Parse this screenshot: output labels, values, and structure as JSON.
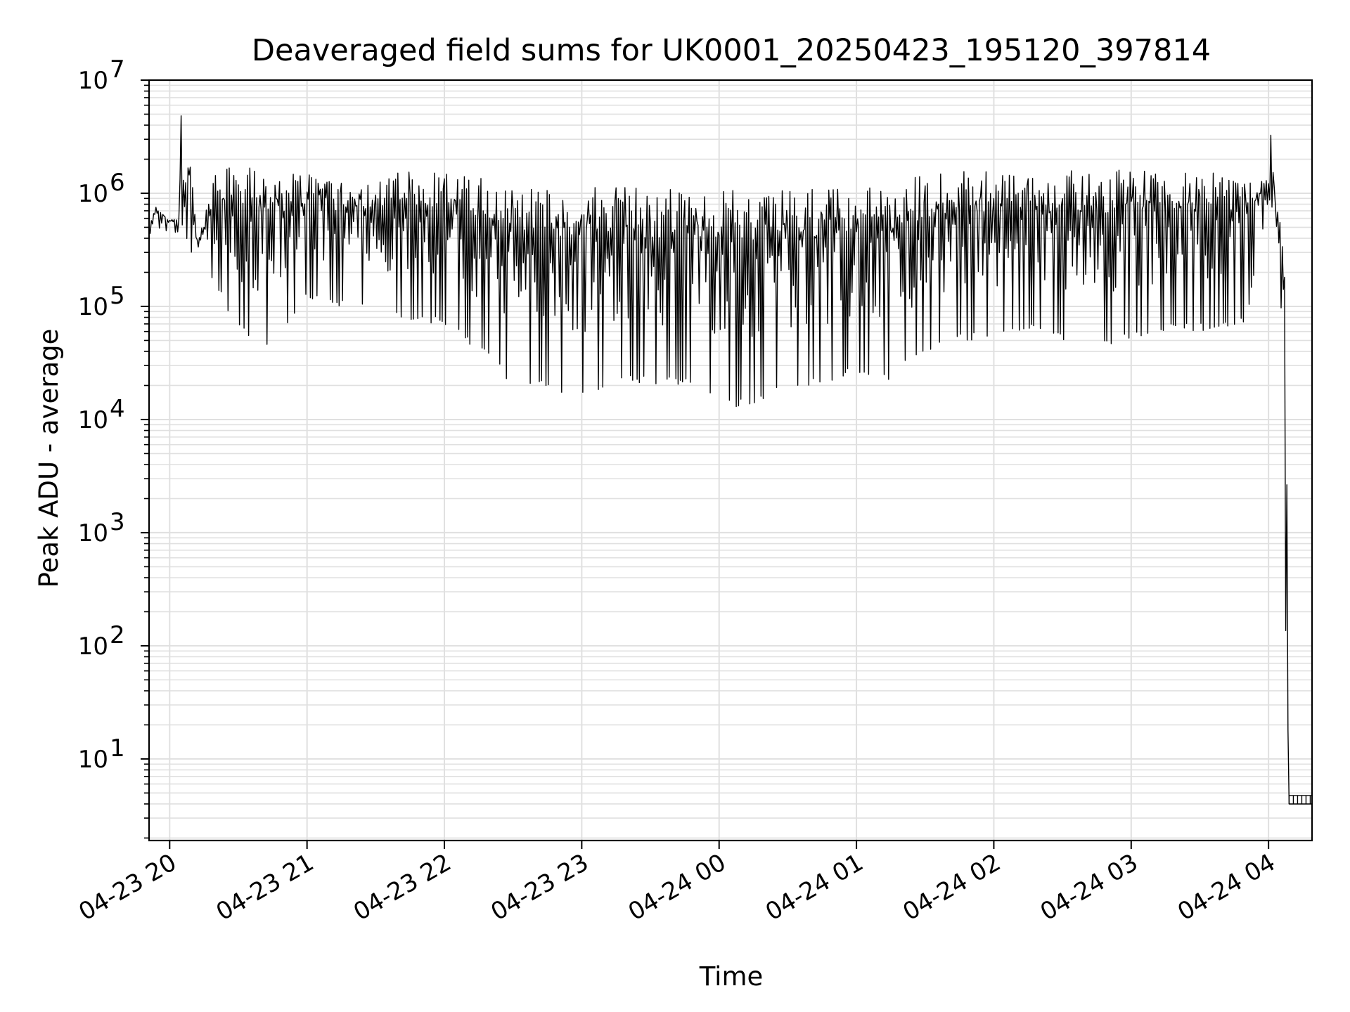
{
  "chart_data": {
    "type": "line",
    "title": "Deaveraged field sums for UK0001_20250423_195120_397814",
    "xlabel": "Time",
    "ylabel": "Peak ADU - average",
    "xscale": "time",
    "yscale": "log",
    "xlim": [
      "2025-04-23 19:51",
      "2025-04-24 04:19"
    ],
    "ylim": [
      1.9,
      10000000
    ],
    "x_ticks": [
      "04-23 20",
      "04-23 21",
      "04-23 22",
      "04-23 23",
      "04-24 00",
      "04-24 01",
      "04-24 02",
      "04-24 03",
      "04-24 04"
    ],
    "y_ticks": [
      {
        "base": "10",
        "exp": "1"
      },
      {
        "base": "10",
        "exp": "2"
      },
      {
        "base": "10",
        "exp": "3"
      },
      {
        "base": "10",
        "exp": "4"
      },
      {
        "base": "10",
        "exp": "5"
      },
      {
        "base": "10",
        "exp": "6"
      },
      {
        "base": "10",
        "exp": "7"
      }
    ],
    "grid": true,
    "line_color": "#000000",
    "grid_color": "#e0e0e0",
    "series": [
      {
        "x": [
          "2025-04-23 19:51",
          "2025-04-23 19:54",
          "2025-04-23 20:00",
          "2025-04-23 20:04",
          "2025-04-23 20:05",
          "2025-04-23 20:06",
          "2025-04-23 20:09",
          "2025-04-23 20:12",
          "2025-04-23 20:20",
          "2025-04-23 20:30",
          "2025-04-23 20:40",
          "2025-04-23 20:48",
          "2025-04-23 21:00",
          "2025-04-23 21:15",
          "2025-04-23 21:30",
          "2025-04-23 21:45",
          "2025-04-23 22:00",
          "2025-04-23 22:15",
          "2025-04-23 22:30",
          "2025-04-23 22:40",
          "2025-04-23 23:00",
          "2025-04-23 23:15",
          "2025-04-23 23:30",
          "2025-04-23 23:45",
          "2025-04-24 00:00",
          "2025-04-24 00:10",
          "2025-04-24 00:30",
          "2025-04-24 00:45",
          "2025-04-24 01:00",
          "2025-04-24 01:15",
          "2025-04-24 01:30",
          "2025-04-24 01:45",
          "2025-04-24 02:00",
          "2025-04-24 02:15",
          "2025-04-24 02:30",
          "2025-04-24 02:45",
          "2025-04-24 03:00",
          "2025-04-24 03:15",
          "2025-04-24 03:30",
          "2025-04-24 03:50",
          "2025-04-24 04:00",
          "2025-04-24 04:01",
          "2025-04-24 04:03",
          "2025-04-24 04:05",
          "2025-04-24 04:07",
          "2025-04-24 04:08",
          "2025-04-24 04:09",
          "2025-04-24 04:19"
        ],
        "y_high": [
          500000,
          800000,
          600000,
          600000,
          5000000,
          1500000,
          2200000,
          400000,
          1500000,
          1800000,
          1700000,
          1500000,
          1500000,
          1300000,
          1400000,
          1600000,
          1600000,
          1400000,
          1300000,
          1200000,
          1200000,
          1150000,
          1100000,
          1100000,
          1150000,
          1100000,
          1050000,
          1100000,
          1150000,
          1200000,
          1500000,
          1600000,
          1600000,
          1600000,
          1600000,
          1600000,
          1600000,
          1600000,
          1600000,
          1400000,
          1300000,
          4800000,
          800000,
          600000,
          300000,
          3000,
          4,
          4
        ],
        "y_low": [
          350000,
          500000,
          450000,
          450000,
          500000,
          500000,
          300000,
          250000,
          150000,
          60000,
          40000,
          50000,
          120000,
          100000,
          100000,
          70000,
          70000,
          40000,
          20000,
          20000,
          15000,
          20000,
          20000,
          20000,
          15000,
          12000,
          20000,
          20000,
          25000,
          22000,
          40000,
          50000,
          50000,
          60000,
          50000,
          40000,
          50000,
          60000,
          60000,
          70000,
          900000,
          800000,
          600000,
          300000,
          3000,
          4,
          4,
          4
        ]
      }
    ]
  }
}
